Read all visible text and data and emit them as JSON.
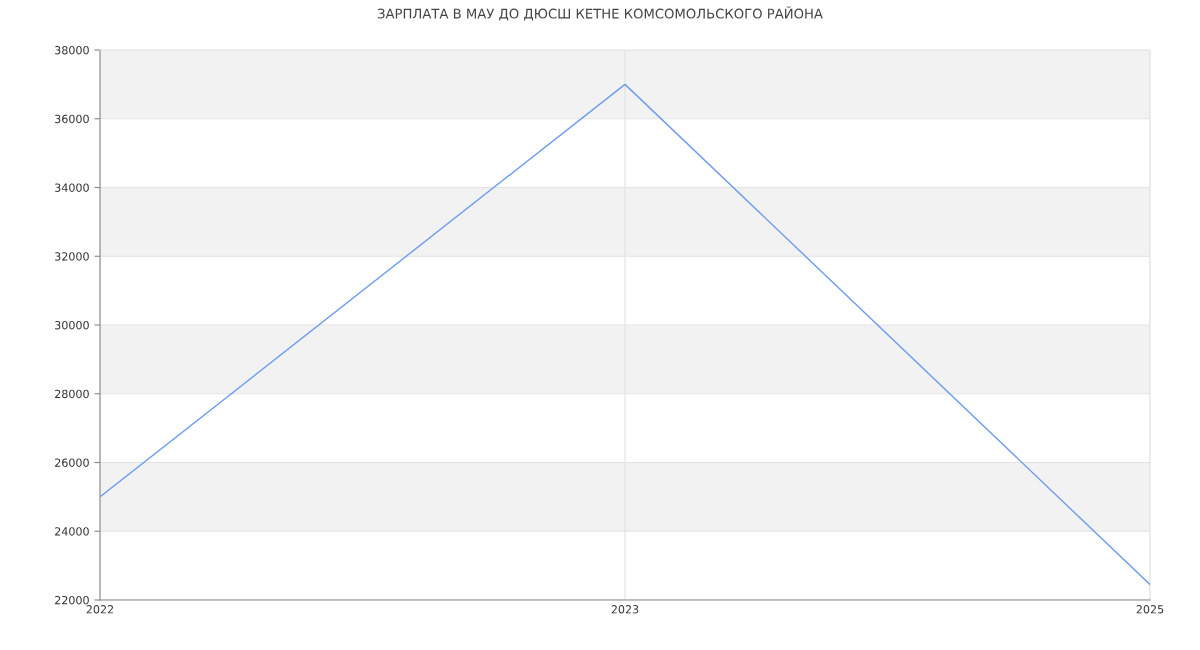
{
  "chart_data": {
    "type": "line",
    "title": "ЗАРПЛАТА В МАУ ДО ДЮСШ КЕТНЕ КОМСОМОЛЬСКОГО РАЙОНА",
    "categories": [
      "2022",
      "2023",
      "2025"
    ],
    "series": [
      {
        "color": "#6d9bf0",
        "values": [
          25000,
          37000,
          22450
        ]
      }
    ],
    "ylim": [
      22000,
      38000
    ],
    "yticks": [
      22000,
      24000,
      26000,
      28000,
      30000,
      32000,
      34000,
      36000,
      38000
    ],
    "bands": [
      {
        "axis": "y",
        "from": 24000,
        "to": 26000,
        "color": "#f2f2f2"
      },
      {
        "axis": "y",
        "from": 28000,
        "to": 30000,
        "color": "#f2f2f2"
      },
      {
        "axis": "y",
        "from": 32000,
        "to": 34000,
        "color": "#f2f2f2"
      },
      {
        "axis": "y",
        "from": 36000,
        "to": 38000,
        "color": "#f2f2f2"
      }
    ],
    "grid": true,
    "legend": false,
    "marker": "none",
    "line_style": "solid"
  }
}
